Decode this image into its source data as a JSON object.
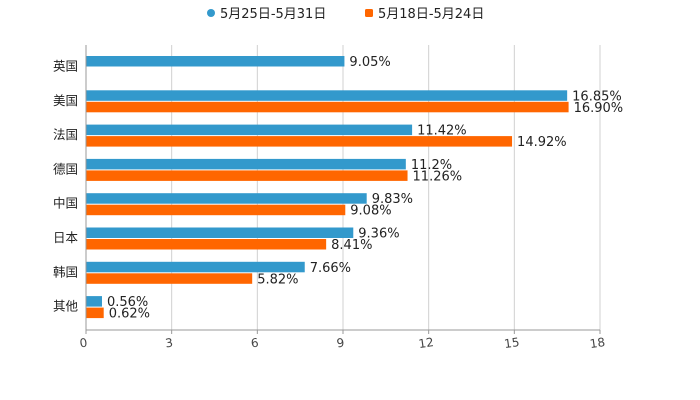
{
  "colors": {
    "series_a": "#3399cc",
    "series_b": "#ff6600",
    "grid": "#d0d0d0",
    "axis": "#999999"
  },
  "legend": {
    "series_a_label": "5月25日-5月31日",
    "series_b_label": "5月18日-5月24日"
  },
  "chart_data": {
    "type": "bar",
    "orientation": "horizontal",
    "title": "",
    "xlabel": "",
    "ylabel": "",
    "xlim": [
      0,
      18
    ],
    "ticks": [
      0,
      3,
      6,
      9,
      12,
      15,
      18
    ],
    "tick_labels": [
      "0",
      "3",
      "6",
      "9",
      "12",
      "15",
      "18"
    ],
    "grid": true,
    "legend_position": "top-center",
    "categories": [
      "英国",
      "美国",
      "法国",
      "德国",
      "中国",
      "日本",
      "韩国",
      "其他"
    ],
    "series": [
      {
        "name": "5月25日-5月31日",
        "color": "#3399cc",
        "values": [
          9.05,
          16.85,
          11.42,
          11.2,
          9.83,
          9.36,
          7.66,
          0.56
        ],
        "labels": [
          "9.05%",
          "16.85%",
          "11.42%",
          "11.2%",
          "9.83%",
          "9.36%",
          "7.66%",
          "0.56%"
        ]
      },
      {
        "name": "5月18日-5月24日",
        "color": "#ff6600",
        "values": [
          null,
          16.9,
          14.92,
          11.26,
          9.08,
          8.41,
          5.82,
          0.62
        ],
        "labels": [
          null,
          "16.90%",
          "14.92%",
          "11.26%",
          "9.08%",
          "8.41%",
          "5.82%",
          "0.62%"
        ]
      }
    ]
  }
}
